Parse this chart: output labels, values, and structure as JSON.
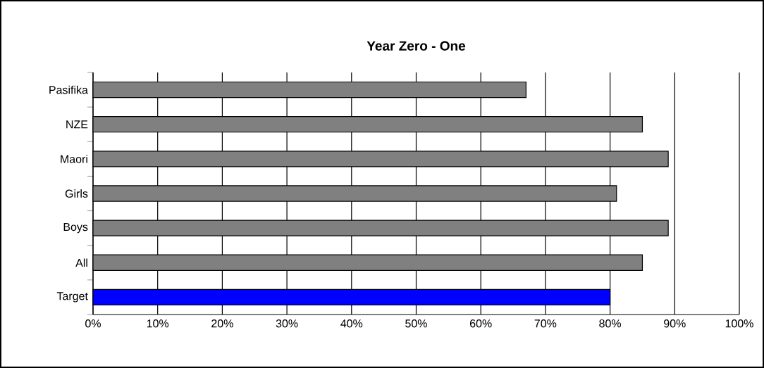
{
  "chart_data": {
    "type": "bar",
    "orientation": "horizontal",
    "title": "Year Zero - One",
    "categories": [
      "Pasifika",
      "NZE",
      "Maori",
      "Girls",
      "Boys",
      "All",
      "Target"
    ],
    "values": [
      67,
      85,
      89,
      81,
      89,
      85,
      80
    ],
    "colors": [
      "#808080",
      "#808080",
      "#808080",
      "#808080",
      "#808080",
      "#808080",
      "#0000ff"
    ],
    "xlim": [
      0,
      100
    ],
    "xticks": [
      {
        "value": 0,
        "label": "0%"
      },
      {
        "value": 10,
        "label": "10%"
      },
      {
        "value": 20,
        "label": "20%"
      },
      {
        "value": 30,
        "label": "30%"
      },
      {
        "value": 40,
        "label": "40%"
      },
      {
        "value": 50,
        "label": "50%"
      },
      {
        "value": 60,
        "label": "60%"
      },
      {
        "value": 70,
        "label": "70%"
      },
      {
        "value": 80,
        "label": "80%"
      },
      {
        "value": 90,
        "label": "90%"
      },
      {
        "value": 100,
        "label": "100%"
      }
    ],
    "grid": "x"
  }
}
